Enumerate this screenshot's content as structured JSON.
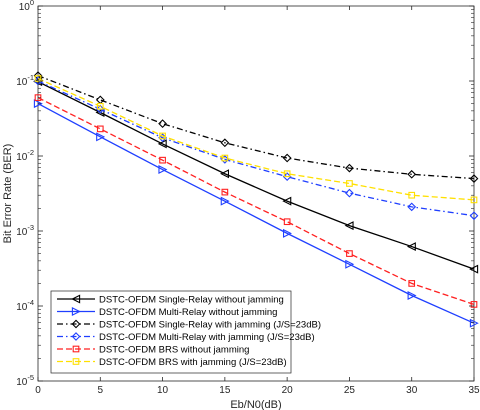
{
  "chart_data": {
    "type": "line",
    "title": "",
    "xlabel": "Eb/N0(dB)",
    "ylabel": "Bit Error Rate  (BER)",
    "xlim": [
      0,
      35
    ],
    "ylim": [
      1e-05,
      1
    ],
    "yscale": "log",
    "grid": false,
    "legend_position": "bottom-left",
    "x_ticks": [
      "0",
      "5",
      "10",
      "15",
      "20",
      "25",
      "30",
      "35"
    ],
    "y_ticks": [
      {
        "base": "10",
        "exp": "0",
        "value": 1
      },
      {
        "base": "10",
        "exp": "-1",
        "value": 0.1
      },
      {
        "base": "10",
        "exp": "-2",
        "value": 0.01
      },
      {
        "base": "10",
        "exp": "-3",
        "value": 0.001
      },
      {
        "base": "10",
        "exp": "-4",
        "value": 0.0001
      },
      {
        "base": "10",
        "exp": "-5",
        "value": 1e-05
      }
    ],
    "x": [
      0,
      5,
      10,
      15,
      20,
      25,
      30,
      35
    ],
    "series": [
      {
        "name": "DSTC-OFDM Single-Relay without jamming",
        "color": "#000000",
        "dash": "solid",
        "marker": "triangle-left",
        "values": [
          0.098,
          0.038,
          0.0145,
          0.0058,
          0.0025,
          0.00118,
          0.00062,
          0.00031
        ]
      },
      {
        "name": "DSTC-OFDM Multi-Relay without jamming",
        "color": "#1f3fff",
        "dash": "solid",
        "marker": "triangle-right",
        "values": [
          0.05,
          0.018,
          0.0066,
          0.0025,
          0.00093,
          0.00036,
          0.000138,
          5.9e-05
        ]
      },
      {
        "name": "DSTC-OFDM Single-Relay with jamming (J/S=23dB)",
        "color": "#000000",
        "dash": "dashdot",
        "marker": "diamond",
        "values": [
          0.118,
          0.056,
          0.027,
          0.015,
          0.0094,
          0.0069,
          0.0057,
          0.005
        ]
      },
      {
        "name": "DSTC-OFDM Multi-Relay with jamming (J/S=23dB)",
        "color": "#1f3fff",
        "dash": "dashdot",
        "marker": "diamond",
        "values": [
          0.1,
          0.042,
          0.0175,
          0.009,
          0.0053,
          0.0032,
          0.0021,
          0.0016
        ]
      },
      {
        "name": "DSTC-OFDM BRS without jamming",
        "color": "#ff2020",
        "dash": "dashed",
        "marker": "square",
        "values": [
          0.06,
          0.023,
          0.0088,
          0.0033,
          0.00133,
          0.0005,
          0.0002,
          0.000105
        ]
      },
      {
        "name": "DSTC-OFDM BRS with jamming (J/S=23dB)",
        "color": "#ffe000",
        "dash": "dashed",
        "marker": "square",
        "values": [
          0.108,
          0.046,
          0.0185,
          0.0094,
          0.0058,
          0.0043,
          0.003,
          0.0026
        ]
      }
    ]
  }
}
